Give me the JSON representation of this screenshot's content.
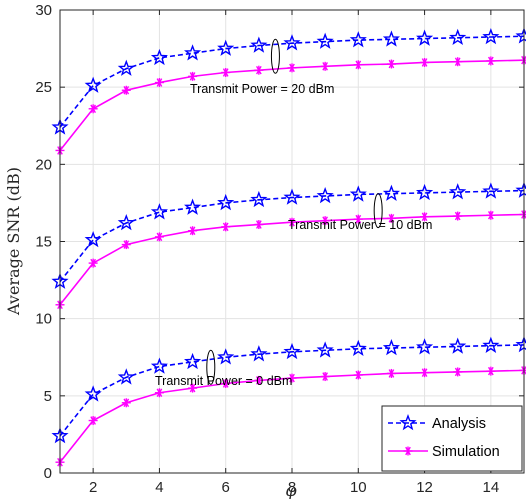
{
  "chart_data": {
    "type": "line",
    "xlabel": "φ",
    "ylabel": "Average SNR (dB)",
    "xlim": [
      1,
      15
    ],
    "ylim": [
      0,
      30
    ],
    "xticks": [
      2,
      4,
      6,
      8,
      10,
      12,
      14
    ],
    "yticks": [
      0,
      5,
      10,
      15,
      20,
      25,
      30
    ],
    "grid": true,
    "legend_position": "bottom-right",
    "x": [
      1,
      2,
      3,
      4,
      5,
      6,
      7,
      8,
      9,
      10,
      11,
      12,
      13,
      14,
      15
    ],
    "series": [
      {
        "name": "Analysis",
        "group": "Transmit Power = 20 dBm",
        "style": "dashed",
        "marker": "star",
        "color": "#0000ff",
        "values": [
          22.4,
          25.1,
          26.2,
          26.9,
          27.2,
          27.5,
          27.7,
          27.85,
          27.95,
          28.05,
          28.1,
          28.15,
          28.2,
          28.25,
          28.3
        ]
      },
      {
        "name": "Simulation",
        "group": "Transmit Power = 20 dBm",
        "style": "solid",
        "marker": "asterisk",
        "color": "#ff00ff",
        "values": [
          20.9,
          23.6,
          24.8,
          25.3,
          25.7,
          25.95,
          26.1,
          26.25,
          26.35,
          26.45,
          26.5,
          26.6,
          26.65,
          26.7,
          26.75
        ]
      },
      {
        "name": "Analysis",
        "group": "Transmit Power = 10 dBm",
        "style": "dashed",
        "marker": "star",
        "color": "#0000ff",
        "values": [
          12.4,
          15.1,
          16.2,
          16.9,
          17.2,
          17.5,
          17.7,
          17.85,
          17.95,
          18.05,
          18.1,
          18.15,
          18.2,
          18.25,
          18.3
        ]
      },
      {
        "name": "Simulation",
        "group": "Transmit Power = 10 dBm",
        "style": "solid",
        "marker": "asterisk",
        "color": "#ff00ff",
        "values": [
          10.9,
          13.6,
          14.8,
          15.3,
          15.7,
          15.95,
          16.1,
          16.25,
          16.35,
          16.45,
          16.5,
          16.6,
          16.65,
          16.7,
          16.75
        ]
      },
      {
        "name": "Analysis",
        "group": "Transmit Power = 0 dBm",
        "style": "dashed",
        "marker": "star",
        "color": "#0000ff",
        "values": [
          2.4,
          5.1,
          6.2,
          6.9,
          7.2,
          7.5,
          7.7,
          7.85,
          7.95,
          8.05,
          8.1,
          8.15,
          8.2,
          8.25,
          8.3
        ]
      },
      {
        "name": "Simulation",
        "group": "Transmit Power = 0 dBm",
        "style": "solid",
        "marker": "asterisk",
        "color": "#ff00ff",
        "values": [
          0.7,
          3.4,
          4.55,
          5.2,
          5.5,
          5.8,
          6.0,
          6.15,
          6.25,
          6.35,
          6.45,
          6.5,
          6.55,
          6.6,
          6.65
        ]
      }
    ],
    "annotations": [
      {
        "text": "Transmit Power = 20 dBm",
        "ellipse_x": 7.5,
        "ellipse_y": 27.0
      },
      {
        "text": "Transmit Power = 10 dBm",
        "ellipse_x": 10.6,
        "ellipse_y": 17.0
      },
      {
        "text": "Transmit Power = 0 dBm",
        "ellipse_x": 5.55,
        "ellipse_y": 6.85
      }
    ],
    "legend": [
      {
        "label": "Analysis",
        "style": "dashed",
        "marker": "star",
        "color": "#0000ff"
      },
      {
        "label": "Simulation",
        "style": "solid",
        "marker": "asterisk",
        "color": "#ff00ff"
      }
    ]
  }
}
